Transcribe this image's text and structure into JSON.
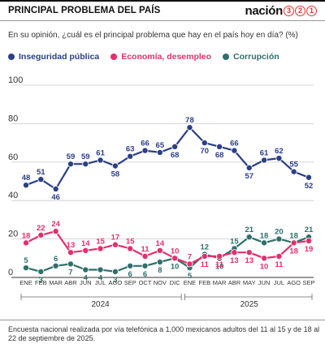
{
  "header": {
    "title": "PRINCIPAL PROBLEMA DEL PAÍS",
    "brand_word": "nación",
    "brand_digits": [
      "3",
      "2",
      "1"
    ]
  },
  "question": "En su opinión, ¿cuál es el principal problema que hay en el país hoy en día?  (%)",
  "colors": {
    "inseguridad": "#2b3f86",
    "economia": "#e2306c",
    "corrupcion": "#2f6f6c",
    "grid": "#cccccc",
    "axis": "#333333"
  },
  "footnote": "Encuesta nacional realizada por vía telefónica a 1,000 mexicanos adultos del 11 al 15 y de 18 al 22 de septiembre de 2025.",
  "chart_data": {
    "type": "line",
    "categories": [
      "ENE",
      "FEB",
      "MAR",
      "ABR",
      "JUN",
      "JUL",
      "AGO",
      "SEP",
      "OCT",
      "NOV",
      "DIC",
      "ENE",
      "FEB",
      "MAR",
      "ABR",
      "MAY",
      "JUN",
      "JUL",
      "AGO",
      "SEP"
    ],
    "year_labels": [
      "2024",
      "2025"
    ],
    "ylim": [
      0,
      100
    ],
    "yticks": [
      0,
      20,
      40,
      60,
      80,
      100
    ],
    "grid": true,
    "legend_position": "top-left",
    "series": [
      {
        "key": "inseguridad",
        "name": "Inseguridad pública",
        "color": "#2b3f86",
        "values": [
          48,
          51,
          46,
          59,
          59,
          61,
          58,
          63,
          66,
          65,
          68,
          78,
          70,
          68,
          66,
          57,
          61,
          62,
          55,
          52
        ],
        "label_pos": [
          "above",
          "above",
          "below",
          "above",
          "above",
          "above",
          "below",
          "above",
          "above",
          "above",
          "below",
          "above",
          "below",
          "below",
          "above",
          "below",
          "above",
          "above",
          "above",
          "below"
        ]
      },
      {
        "key": "economia",
        "name": "Economía, desempleo",
        "color": "#e2306c",
        "values": [
          18,
          22,
          24,
          13,
          14,
          15,
          17,
          15,
          11,
          14,
          10,
          7,
          11,
          11,
          13,
          13,
          10,
          11,
          18,
          19
        ],
        "label_pos": [
          "above",
          "above",
          "above",
          "above",
          "above",
          "above",
          "above",
          "above",
          "above",
          "above",
          "above",
          "above",
          "below",
          "below",
          "below",
          "below",
          "below",
          "below",
          "below",
          "below"
        ]
      },
      {
        "key": "corrupcion",
        "name": "Corrupción",
        "color": "#2f6f6c",
        "values": [
          5,
          3,
          6,
          7,
          4,
          4,
          3,
          6,
          6,
          8,
          10,
          5,
          12,
          10,
          15,
          21,
          18,
          20,
          18,
          21
        ],
        "label_pos": [
          "above",
          "below",
          "above",
          "below",
          "below",
          "below",
          "below",
          "below",
          "below",
          "below",
          "below",
          "below",
          "above",
          "below",
          "above",
          "above",
          "above",
          "above",
          "above",
          "above"
        ]
      }
    ]
  }
}
